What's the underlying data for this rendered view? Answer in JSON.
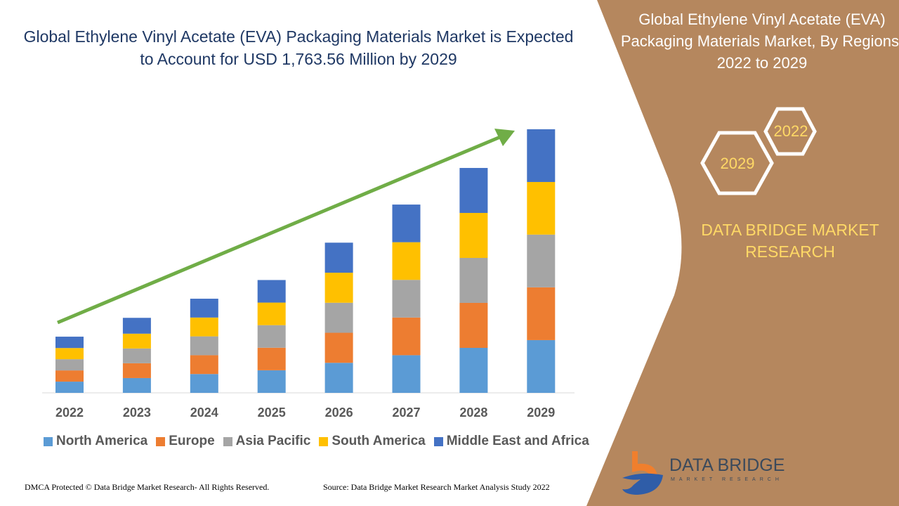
{
  "title": "Global Ethylene Vinyl Acetate (EVA) Packaging Materials Market is Expected to Account for USD 1,763.56 Million by 2029",
  "side_panel": {
    "title": "Global Ethylene Vinyl Acetate (EVA) Packaging Materials Market, By Regions, 2022 to 2029",
    "hex_top": "2022",
    "hex_bottom": "2029",
    "brand": "DATA BRIDGE MARKET RESEARCH",
    "logo_name": "DATA BRIDGE",
    "logo_sub": "MARKET RESEARCH",
    "panel_color": "#B5875E"
  },
  "footer": {
    "left": "DMCA Protected © Data Bridge Market Research- All Rights Reserved.",
    "right": "Source: Data Bridge Market Research Market Analysis Study 2022"
  },
  "chart_data": {
    "type": "bar",
    "stacked": true,
    "title": "Global Ethylene Vinyl Acetate (EVA) Packaging Materials Market is Expected to Account for USD 1,763.56 Million by 2029",
    "xlabel": "",
    "ylabel": "",
    "unit": "USD Million",
    "categories": [
      "2022",
      "2023",
      "2024",
      "2025",
      "2026",
      "2027",
      "2028",
      "2029"
    ],
    "ylim": [
      0,
      1763.56
    ],
    "grid": false,
    "legend": "bottom",
    "trend_arrow": true,
    "trend_color": "#70AD47",
    "series": [
      {
        "name": "North America",
        "color": "#5B9BD5",
        "values": [
          75,
          99,
          126,
          151,
          201,
          252,
          301,
          353
        ]
      },
      {
        "name": "Europe",
        "color": "#ED7D31",
        "values": [
          75,
          99,
          126,
          151,
          201,
          252,
          301,
          353
        ]
      },
      {
        "name": "Asia Pacific",
        "color": "#A5A5A5",
        "values": [
          75,
          99,
          126,
          151,
          201,
          252,
          301,
          353
        ]
      },
      {
        "name": "South America",
        "color": "#FFC000",
        "values": [
          75,
          99,
          126,
          151,
          201,
          252,
          301,
          352
        ]
      },
      {
        "name": "Middle East and Africa",
        "color": "#4472C4",
        "values": [
          76,
          106,
          126,
          151,
          201,
          252,
          301,
          353
        ]
      }
    ]
  }
}
